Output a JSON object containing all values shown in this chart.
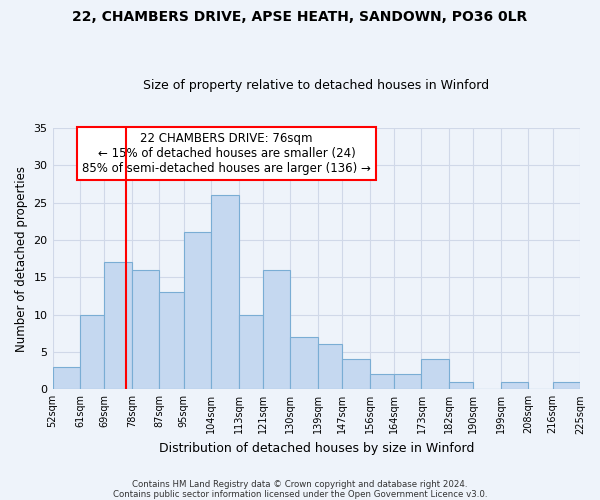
{
  "title": "22, CHAMBERS DRIVE, APSE HEATH, SANDOWN, PO36 0LR",
  "subtitle": "Size of property relative to detached houses in Winford",
  "xlabel": "Distribution of detached houses by size in Winford",
  "ylabel": "Number of detached properties",
  "bin_edges": [
    52,
    61,
    69,
    78,
    87,
    95,
    104,
    113,
    121,
    130,
    139,
    147,
    156,
    164,
    173,
    182,
    190,
    199,
    208,
    216,
    225
  ],
  "counts": [
    3,
    10,
    17,
    16,
    13,
    21,
    26,
    10,
    16,
    7,
    6,
    4,
    2,
    2,
    4,
    1,
    0,
    1,
    0,
    1
  ],
  "bar_color": "#c5d8f0",
  "bar_edge_color": "#7aadd4",
  "vline_x": 76,
  "vline_color": "red",
  "ylim": [
    0,
    35
  ],
  "yticks": [
    0,
    5,
    10,
    15,
    20,
    25,
    30,
    35
  ],
  "tick_labels": [
    "52sqm",
    "61sqm",
    "69sqm",
    "78sqm",
    "87sqm",
    "95sqm",
    "104sqm",
    "113sqm",
    "121sqm",
    "130sqm",
    "139sqm",
    "147sqm",
    "156sqm",
    "164sqm",
    "173sqm",
    "182sqm",
    "190sqm",
    "199sqm",
    "208sqm",
    "216sqm",
    "225sqm"
  ],
  "annotation_title": "22 CHAMBERS DRIVE: 76sqm",
  "annotation_line1": "← 15% of detached houses are smaller (24)",
  "annotation_line2": "85% of semi-detached houses are larger (136) →",
  "annotation_box_color": "white",
  "annotation_box_edge_color": "red",
  "footnote1": "Contains HM Land Registry data © Crown copyright and database right 2024.",
  "footnote2": "Contains public sector information licensed under the Open Government Licence v3.0.",
  "grid_color": "#d0d8e8",
  "background_color": "#eef3fa"
}
